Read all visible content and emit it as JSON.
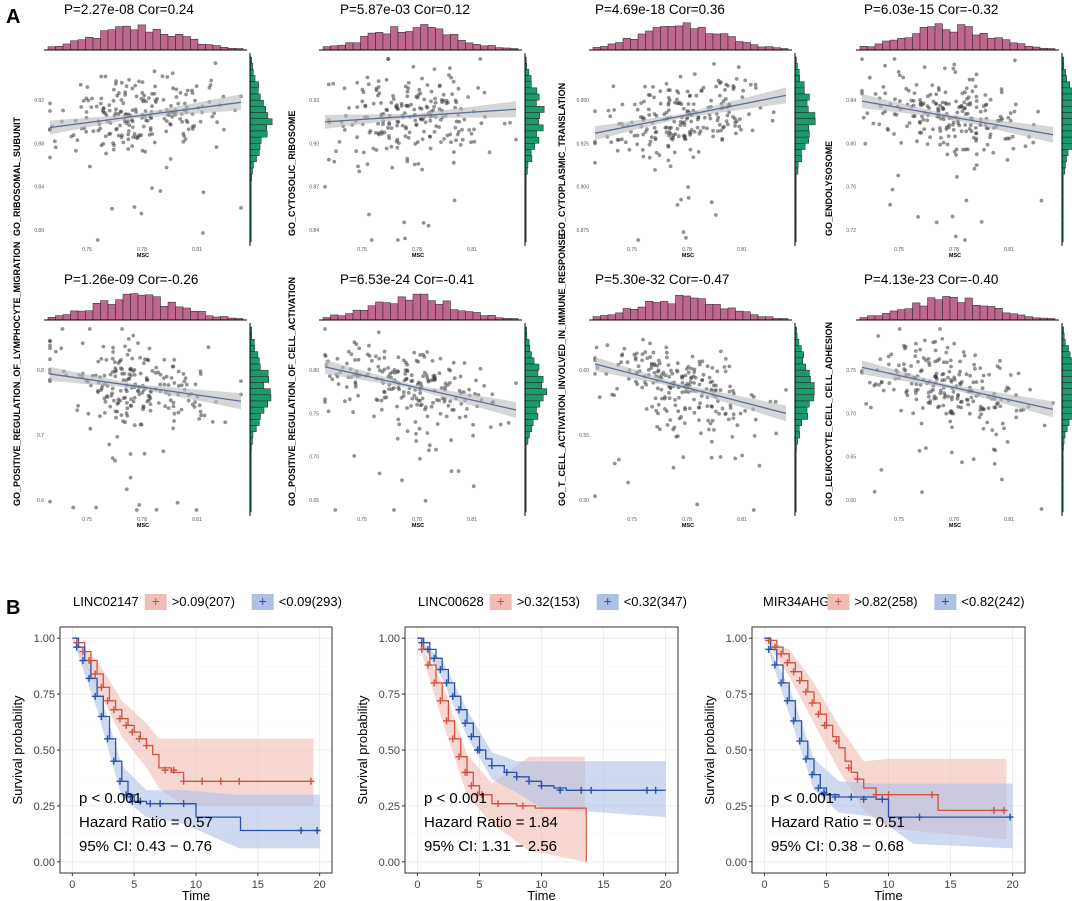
{
  "colors": {
    "hist_top": "#C0678E",
    "hist_right": "#1D9A6C",
    "point": "#3a3a3a",
    "reg_line": "#5B6F9B",
    "ci_band": "#BBBBBB",
    "km_high": "#D0533F",
    "km_low": "#2A52A7",
    "km_high_fill": "#F0BDB4",
    "km_low_fill": "#AFC0E6",
    "grid": "#E8E8E8"
  },
  "panel_a": {
    "label": "A",
    "xlabel": "MSC",
    "x_ticks": [
      "0.75",
      "0.78",
      "0.81"
    ],
    "plots": [
      {
        "title": "P=2.27e-08 Cor=0.24",
        "ylabel": "GO_RIBOSOMAL_SUBUNIT",
        "y_ticks": [
          "0.92",
          "0.88",
          "0.84",
          "0.80"
        ],
        "cor": 0.24
      },
      {
        "title": "P=5.87e-03 Cor=0.12",
        "ylabel": "GO_CYTOSOLIC_RIBOSOME",
        "y_ticks": [
          "0.93",
          "0.90",
          "0.87",
          "0.84"
        ],
        "cor": 0.12
      },
      {
        "title": "P=4.69e-18 Cor=0.36",
        "ylabel": "GO_CYTOPLASMIC_TRANSLATION",
        "y_ticks": [
          "0.950",
          "0.925",
          "0.900",
          "0.875"
        ],
        "cor": 0.36
      },
      {
        "title": "P=6.03e-15 Cor=-0.32",
        "ylabel": "GO_ENDOLYSOSOME",
        "y_ticks": [
          "0.84",
          "0.80",
          "0.76",
          "0.72"
        ],
        "cor": -0.32
      },
      {
        "title": "P=1.26e-09 Cor=-0.26",
        "ylabel": "GO_POSITIVE_REGULATION_OF_LYMPHOCYTE_MIGRATION",
        "y_ticks": [
          "0.8",
          "0.7",
          "0.6"
        ],
        "cor": -0.26
      },
      {
        "title": "P=6.53e-24 Cor=-0.41",
        "ylabel": "GO_POSITIVE_REGULATION_OF_CELL_ACTIVATION",
        "y_ticks": [
          "0.80",
          "0.75",
          "0.70",
          "0.65"
        ],
        "cor": -0.41
      },
      {
        "title": "P=5.30e-32 Cor=-0.47",
        "ylabel": "GO_T_CELL_ACTIVATION_INVOLVED_IN_IMMUNE_RESPONSE",
        "y_ticks": [
          "0.60",
          "0.55",
          "0.50"
        ],
        "cor": -0.47
      },
      {
        "title": "P=4.13e-23 Cor=-0.40",
        "ylabel": "GO_LEUKOCYTE_CELL_CELL_ADHESION",
        "y_ticks": [
          "0.75",
          "0.70",
          "0.65",
          "0.60"
        ],
        "cor": -0.4
      }
    ]
  },
  "panel_b": {
    "label": "B",
    "xlabel": "Time",
    "ylabel": "Survival probability",
    "x_ticks": [
      "0",
      "5",
      "10",
      "15",
      "20"
    ],
    "y_ticks": [
      "0.00",
      "0.25",
      "0.50",
      "0.75",
      "1.00"
    ],
    "plots": [
      {
        "gene": "LINC02147",
        "high_label": ">0.09(207)",
        "low_label": "<0.09(293)",
        "p_text": "p < 0.001",
        "hr_text": "Hazard Ratio = 0.57",
        "ci_text": "95% CI: 0.43 − 0.76",
        "high_curve": [
          [
            0,
            1.0
          ],
          [
            0.5,
            0.98
          ],
          [
            1,
            0.94
          ],
          [
            1.5,
            0.9
          ],
          [
            2,
            0.84
          ],
          [
            2.5,
            0.78
          ],
          [
            3,
            0.72
          ],
          [
            3.5,
            0.68
          ],
          [
            4,
            0.64
          ],
          [
            4.5,
            0.61
          ],
          [
            5,
            0.58
          ],
          [
            5.5,
            0.55
          ],
          [
            6,
            0.52
          ],
          [
            6.5,
            0.48
          ],
          [
            7,
            0.42
          ],
          [
            8,
            0.4
          ],
          [
            9,
            0.36
          ],
          [
            12,
            0.36
          ],
          [
            15,
            0.36
          ],
          [
            19.5,
            0.36
          ]
        ],
        "high_upper": [
          [
            0,
            1.0
          ],
          [
            2,
            0.9
          ],
          [
            4,
            0.72
          ],
          [
            6,
            0.62
          ],
          [
            7,
            0.55
          ],
          [
            9,
            0.55
          ],
          [
            19.5,
            0.55
          ]
        ],
        "high_lower": [
          [
            0,
            1.0
          ],
          [
            2,
            0.78
          ],
          [
            4,
            0.56
          ],
          [
            6,
            0.42
          ],
          [
            7,
            0.33
          ],
          [
            9,
            0.25
          ],
          [
            19.5,
            0.25
          ]
        ],
        "low_curve": [
          [
            0,
            1.0
          ],
          [
            0.5,
            0.96
          ],
          [
            1,
            0.9
          ],
          [
            1.5,
            0.82
          ],
          [
            2,
            0.74
          ],
          [
            2.5,
            0.65
          ],
          [
            3,
            0.55
          ],
          [
            3.5,
            0.45
          ],
          [
            4,
            0.36
          ],
          [
            4.5,
            0.3
          ],
          [
            5,
            0.27
          ],
          [
            6,
            0.26
          ],
          [
            9,
            0.26
          ],
          [
            10,
            0.2
          ],
          [
            13.5,
            0.2
          ],
          [
            13.6,
            0.14
          ],
          [
            20,
            0.14
          ]
        ],
        "low_upper": [
          [
            0,
            1.0
          ],
          [
            2,
            0.8
          ],
          [
            4,
            0.43
          ],
          [
            6,
            0.32
          ],
          [
            9,
            0.32
          ],
          [
            13.5,
            0.3
          ],
          [
            20,
            0.3
          ]
        ],
        "low_lower": [
          [
            0,
            1.0
          ],
          [
            2,
            0.68
          ],
          [
            4,
            0.29
          ],
          [
            6,
            0.2
          ],
          [
            9,
            0.17
          ],
          [
            13.5,
            0.06
          ],
          [
            20,
            0.06
          ]
        ],
        "high_censors": [
          [
            5.4,
            0.55
          ],
          [
            6,
            0.52
          ],
          [
            7.5,
            0.41
          ],
          [
            8.2,
            0.41
          ],
          [
            9,
            0.36
          ],
          [
            10.5,
            0.36
          ],
          [
            12,
            0.36
          ],
          [
            13.5,
            0.36
          ],
          [
            19.3,
            0.36
          ]
        ],
        "low_censors": [
          [
            4.7,
            0.29
          ],
          [
            5.5,
            0.27
          ],
          [
            6.3,
            0.26
          ],
          [
            7.1,
            0.26
          ],
          [
            9,
            0.26
          ],
          [
            18.5,
            0.14
          ],
          [
            19.8,
            0.14
          ]
        ]
      },
      {
        "gene": "LINC00628",
        "high_label": ">0.32(153)",
        "low_label": "<0.32(347)",
        "p_text": "p < 0.001",
        "hr_text": "Hazard Ratio = 1.84",
        "ci_text": "95% CI: 1.31 − 2.56",
        "high_curve": [
          [
            0,
            1.0
          ],
          [
            0.5,
            0.95
          ],
          [
            1,
            0.88
          ],
          [
            1.5,
            0.8
          ],
          [
            2,
            0.72
          ],
          [
            2.5,
            0.63
          ],
          [
            3,
            0.55
          ],
          [
            3.5,
            0.47
          ],
          [
            4,
            0.4
          ],
          [
            4.5,
            0.34
          ],
          [
            5,
            0.3
          ],
          [
            6,
            0.26
          ],
          [
            8,
            0.25
          ],
          [
            9.5,
            0.24
          ],
          [
            13.5,
            0.24
          ],
          [
            13.6,
            0.0
          ]
        ],
        "high_upper": [
          [
            0,
            1.0
          ],
          [
            2,
            0.8
          ],
          [
            4,
            0.48
          ],
          [
            6,
            0.35
          ],
          [
            9,
            0.47
          ],
          [
            13.5,
            0.47
          ]
        ],
        "high_lower": [
          [
            0,
            1.0
          ],
          [
            2,
            0.63
          ],
          [
            4,
            0.3
          ],
          [
            6,
            0.17
          ],
          [
            9,
            0.05
          ],
          [
            13.5,
            0.0
          ]
        ],
        "low_curve": [
          [
            0,
            1.0
          ],
          [
            0.5,
            0.98
          ],
          [
            1,
            0.95
          ],
          [
            1.5,
            0.91
          ],
          [
            2,
            0.86
          ],
          [
            2.5,
            0.8
          ],
          [
            3,
            0.74
          ],
          [
            3.5,
            0.68
          ],
          [
            4,
            0.62
          ],
          [
            4.5,
            0.56
          ],
          [
            5,
            0.5
          ],
          [
            5.5,
            0.46
          ],
          [
            6,
            0.43
          ],
          [
            7,
            0.4
          ],
          [
            8,
            0.38
          ],
          [
            9,
            0.36
          ],
          [
            10,
            0.34
          ],
          [
            11,
            0.33
          ],
          [
            12,
            0.32
          ],
          [
            20,
            0.32
          ]
        ],
        "low_upper": [
          [
            0,
            1.0
          ],
          [
            2,
            0.9
          ],
          [
            4,
            0.68
          ],
          [
            6,
            0.49
          ],
          [
            8,
            0.45
          ],
          [
            10,
            0.45
          ],
          [
            20,
            0.45
          ]
        ],
        "low_lower": [
          [
            0,
            1.0
          ],
          [
            2,
            0.82
          ],
          [
            4,
            0.56
          ],
          [
            6,
            0.37
          ],
          [
            8,
            0.31
          ],
          [
            10,
            0.24
          ],
          [
            20,
            0.2
          ]
        ],
        "high_censors": [
          [
            4,
            0.4
          ],
          [
            5.2,
            0.3
          ],
          [
            6.5,
            0.26
          ],
          [
            8.5,
            0.25
          ]
        ],
        "low_censors": [
          [
            5,
            0.5
          ],
          [
            6,
            0.43
          ],
          [
            7.2,
            0.4
          ],
          [
            8,
            0.38
          ],
          [
            9,
            0.36
          ],
          [
            10,
            0.34
          ],
          [
            11.5,
            0.32
          ],
          [
            13.2,
            0.32
          ],
          [
            14,
            0.32
          ],
          [
            18.5,
            0.32
          ],
          [
            19.2,
            0.32
          ]
        ]
      },
      {
        "gene": "MIR34AHG",
        "high_label": ">0.82(258)",
        "low_label": "<0.82(242)",
        "p_text": "p < 0.001",
        "hr_text": "Hazard Ratio = 0.51",
        "ci_text": "95% CI: 0.38 − 0.68",
        "high_curve": [
          [
            0,
            1.0
          ],
          [
            0.5,
            0.99
          ],
          [
            1,
            0.96
          ],
          [
            1.5,
            0.93
          ],
          [
            2,
            0.89
          ],
          [
            2.5,
            0.85
          ],
          [
            3,
            0.81
          ],
          [
            3.5,
            0.76
          ],
          [
            4,
            0.71
          ],
          [
            4.5,
            0.66
          ],
          [
            5,
            0.61
          ],
          [
            5.5,
            0.56
          ],
          [
            6,
            0.51
          ],
          [
            6.5,
            0.45
          ],
          [
            7,
            0.4
          ],
          [
            7.5,
            0.37
          ],
          [
            8,
            0.33
          ],
          [
            9,
            0.3
          ],
          [
            13.5,
            0.3
          ],
          [
            14,
            0.23
          ],
          [
            19.5,
            0.23
          ]
        ],
        "high_upper": [
          [
            0,
            1.0
          ],
          [
            2,
            0.95
          ],
          [
            4,
            0.8
          ],
          [
            6,
            0.61
          ],
          [
            8,
            0.45
          ],
          [
            10,
            0.46
          ],
          [
            19.5,
            0.46
          ]
        ],
        "high_lower": [
          [
            0,
            1.0
          ],
          [
            2,
            0.83
          ],
          [
            4,
            0.62
          ],
          [
            6,
            0.41
          ],
          [
            8,
            0.23
          ],
          [
            10,
            0.15
          ],
          [
            19.5,
            0.1
          ]
        ],
        "low_curve": [
          [
            0,
            1.0
          ],
          [
            0.5,
            0.95
          ],
          [
            1,
            0.88
          ],
          [
            1.5,
            0.8
          ],
          [
            2,
            0.72
          ],
          [
            2.5,
            0.63
          ],
          [
            3,
            0.54
          ],
          [
            3.5,
            0.46
          ],
          [
            4,
            0.39
          ],
          [
            4.5,
            0.33
          ],
          [
            5,
            0.3
          ],
          [
            6,
            0.29
          ],
          [
            9,
            0.28
          ],
          [
            10,
            0.2
          ],
          [
            20,
            0.2
          ]
        ],
        "low_upper": [
          [
            0,
            1.0
          ],
          [
            2,
            0.78
          ],
          [
            4,
            0.46
          ],
          [
            6,
            0.36
          ],
          [
            9,
            0.35
          ],
          [
            12,
            0.35
          ],
          [
            20,
            0.35
          ]
        ],
        "low_lower": [
          [
            0,
            1.0
          ],
          [
            2,
            0.66
          ],
          [
            4,
            0.32
          ],
          [
            6,
            0.22
          ],
          [
            9,
            0.2
          ],
          [
            12,
            0.08
          ],
          [
            20,
            0.06
          ]
        ],
        "high_censors": [
          [
            5,
            0.61
          ],
          [
            5.8,
            0.54
          ],
          [
            6.8,
            0.42
          ],
          [
            7.5,
            0.37
          ],
          [
            9,
            0.3
          ],
          [
            10,
            0.3
          ],
          [
            13.5,
            0.3
          ],
          [
            18.5,
            0.23
          ],
          [
            19.3,
            0.23
          ]
        ],
        "low_censors": [
          [
            4.8,
            0.31
          ],
          [
            5.7,
            0.29
          ],
          [
            7,
            0.29
          ],
          [
            8,
            0.28
          ],
          [
            9.5,
            0.28
          ],
          [
            12.5,
            0.2
          ],
          [
            19.8,
            0.2
          ]
        ]
      }
    ]
  }
}
